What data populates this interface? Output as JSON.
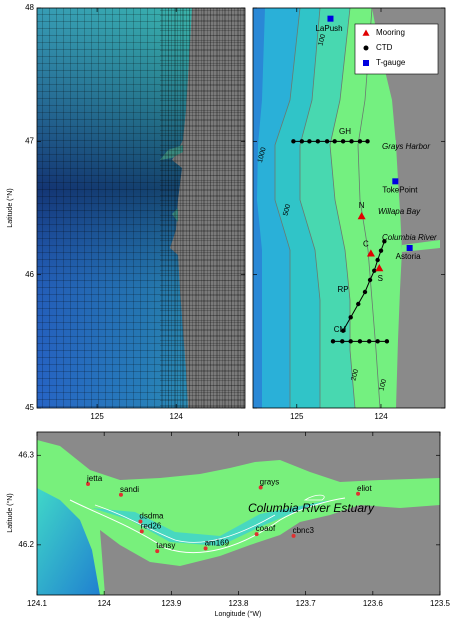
{
  "top_left": {
    "xlim": [
      125.76,
      123.13
    ],
    "ylim": [
      45,
      48
    ],
    "xticks": [
      125,
      124
    ],
    "yticks": [
      45,
      46,
      47,
      48
    ],
    "ylabel": "Latitude (°N)"
  },
  "top_right": {
    "xlim": [
      125.52,
      123.24
    ],
    "ylim": [
      45,
      48
    ],
    "xticks": [
      125,
      124
    ],
    "yticks": [
      45,
      46,
      47,
      48
    ],
    "legend": [
      "Mooring",
      "CTD",
      "T-gauge"
    ],
    "moorings": {
      "names": [
        "N",
        "C",
        "S"
      ],
      "lon": [
        124.23,
        124.12,
        124.02
      ],
      "lat": [
        46.44,
        46.16,
        46.05
      ],
      "color": "#e00000"
    },
    "ctd": {
      "lon": [
        125.04,
        124.94,
        124.85,
        124.75,
        124.64,
        124.55,
        124.45,
        124.35,
        124.25,
        124.16,
        123.96,
        124.0,
        124.04,
        124.08,
        124.13,
        124.19,
        124.27,
        124.36,
        124.45,
        124.57,
        124.46,
        124.36,
        124.25,
        124.14,
        124.04,
        123.93
      ],
      "lat": [
        47.0,
        47.0,
        47.0,
        47.0,
        47.0,
        47.0,
        47.0,
        47.0,
        47.0,
        47.0,
        46.25,
        46.18,
        46.11,
        46.03,
        45.96,
        45.87,
        45.78,
        45.68,
        45.58,
        45.5,
        45.5,
        45.5,
        45.5,
        45.5,
        45.5,
        45.5
      ],
      "color": "#000000"
    },
    "tide_gauges": {
      "names": [
        "LaPush",
        "TokePoint",
        "Astoria"
      ],
      "lon": [
        124.6,
        123.83,
        123.66
      ],
      "lat": [
        47.92,
        46.7,
        46.2
      ],
      "color": "#0000e0"
    },
    "transects": [
      "GH",
      "RP",
      "CM"
    ],
    "places": [
      "Grays Harbor",
      "Willapa Bay",
      "Columbia River"
    ],
    "contours": [
      100,
      1000,
      500,
      200,
      100
    ]
  },
  "bottom": {
    "title": "Columbia River Estuary",
    "xlabel": "Longitude (°W)",
    "ylabel": "Latitude (°N)",
    "xlim": [
      124.1,
      123.5
    ],
    "ylim": [
      46.144,
      46.326
    ],
    "xticks": [
      124.1,
      124,
      123.9,
      123.8,
      123.7,
      123.6,
      123.5
    ],
    "yticks": [
      46.2,
      46.3
    ],
    "stations": {
      "names": [
        "jetta",
        "sandi",
        "dsdma",
        "red26",
        "tansy",
        "am169",
        "coaof",
        "grays",
        "cbnc3",
        "eliot"
      ],
      "lon": [
        124.024,
        123.975,
        123.946,
        123.944,
        123.921,
        123.849,
        123.773,
        123.767,
        123.718,
        123.622
      ],
      "lat": [
        46.268,
        46.256,
        46.226,
        46.215,
        46.193,
        46.196,
        46.212,
        46.264,
        46.21,
        46.257
      ],
      "color": "#e03030"
    }
  }
}
